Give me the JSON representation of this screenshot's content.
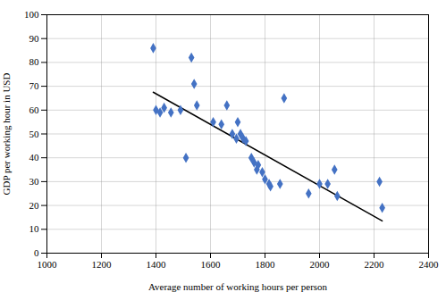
{
  "chart_data": {
    "type": "scatter",
    "xlabel": "Average number of working hours per person",
    "ylabel": "GDP per working hour in USD",
    "series": [
      {
        "type": "scatter",
        "marker": "diamond",
        "color": "#4472c4",
        "x": [
          1390,
          1400,
          1415,
          1430,
          1455,
          1490,
          1510,
          1530,
          1540,
          1550,
          1610,
          1640,
          1660,
          1680,
          1695,
          1700,
          1710,
          1720,
          1730,
          1750,
          1760,
          1770,
          1775,
          1790,
          1800,
          1815,
          1820,
          1855,
          1870,
          1960,
          2000,
          2030,
          2055,
          2065,
          2220,
          2230
        ],
        "values": [
          86,
          60,
          59,
          61,
          59,
          60,
          40,
          82,
          71,
          62,
          55,
          54,
          62,
          50,
          48,
          55,
          50,
          48,
          47,
          40,
          38,
          35,
          37,
          34,
          31,
          29,
          28,
          29,
          65,
          25,
          29,
          29,
          35,
          24,
          30,
          19
        ]
      },
      {
        "type": "line",
        "color": "#000000",
        "x": [
          1390,
          2230
        ],
        "values": [
          67.5,
          13.5
        ]
      }
    ],
    "xlim": [
      1000,
      2400
    ],
    "ylim": [
      0,
      100
    ],
    "xticks": [
      1000,
      1200,
      1400,
      1600,
      1800,
      2000,
      2200,
      2400
    ],
    "yticks": [
      0,
      10,
      20,
      30,
      40,
      50,
      60,
      70,
      80,
      90,
      100
    ],
    "grid": true
  }
}
